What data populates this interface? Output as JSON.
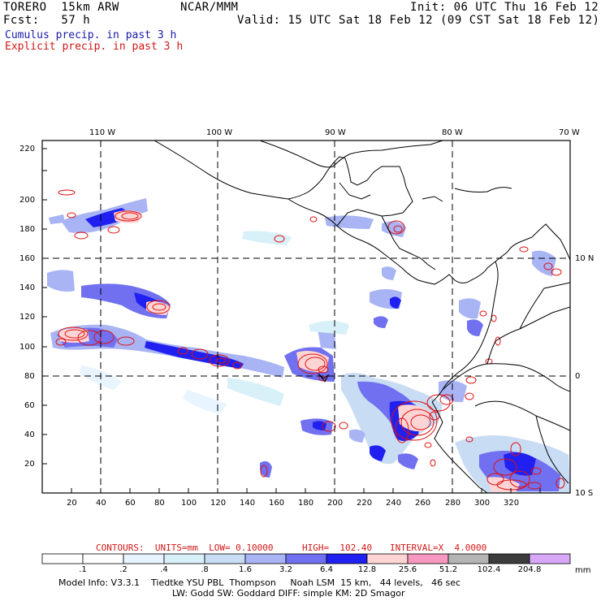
{
  "header": {
    "model": "TORERO  15km ARW",
    "org": "NCAR/MMM",
    "init": "Init: 06 UTC Thu 16 Feb 12",
    "fcst": "Fcst:   57 h",
    "valid": "Valid: 15 UTC Sat 18 Feb 12 (09 CST Sat 18 Feb 12)"
  },
  "legend": {
    "cumulus": "Cumulus precip. in past 3 h",
    "explicit": "Explicit precip. in past 3 h",
    "cumulus_color": "#1a1aa8",
    "explicit_color": "#d01818"
  },
  "map": {
    "lon_labels": [
      "110 W",
      "100 W",
      "90 W",
      "80 W",
      "70 W"
    ],
    "lat_labels": [
      "10 N",
      "0",
      "10 S"
    ],
    "x_ticks": [
      "20",
      "40",
      "60",
      "80",
      "100",
      "120",
      "140",
      "160",
      "180",
      "200",
      "220",
      "240",
      "260",
      "280",
      "300",
      "320"
    ],
    "y_ticks": [
      "20",
      "40",
      "60",
      "80",
      "100",
      "120",
      "140",
      "160",
      "180",
      "200",
      "220"
    ],
    "contour_color": "#e01010",
    "coast_color": "#000000"
  },
  "contours_info": {
    "prefix": "CONTOURS:  UNITS=mm  LOW= 0.10000",
    "high": "HIGH=  102.40",
    "interval": "INTERVAL=X  4.0000"
  },
  "colorbar": {
    "labels": [
      ".1",
      ".2",
      ".4",
      ".8",
      "1.6",
      "3.2",
      "6.4",
      "12.8",
      "25.6",
      "51.2",
      "102.4",
      "204.8"
    ],
    "unit": "mm",
    "colors": [
      "#ffffff",
      "#ffffff",
      "#e8f4ff",
      "#d8f0f8",
      "#c8dcf4",
      "#a8b4f4",
      "#7070f0",
      "#2020f0",
      "#ffd4d4",
      "#f898c0",
      "#b4b4b4",
      "#3c3c3c",
      "#d8a8f8"
    ]
  },
  "footer": {
    "line1": "Model Info: V3.3.1    Tiedtke YSU PBL  Thompson     Noah LSM  15 km,   44 levels,   46 sec",
    "line2": "LW: Godd SW: Goddard DIFF: simple KM: 2D Smagor"
  }
}
